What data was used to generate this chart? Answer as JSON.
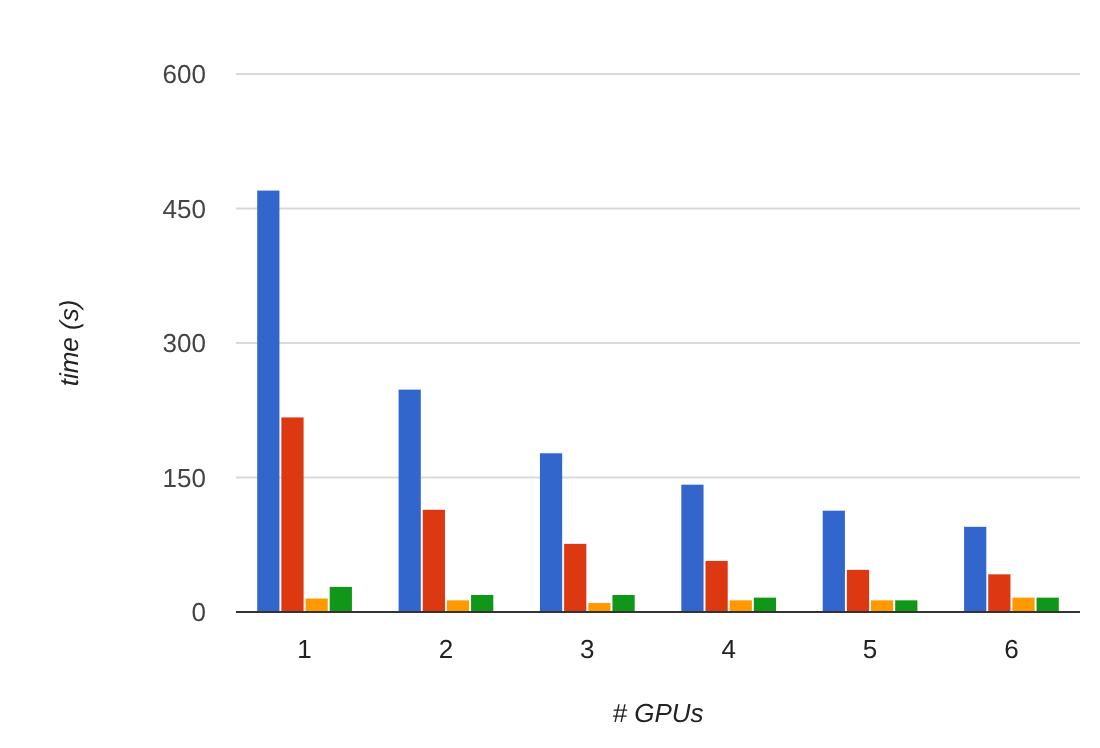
{
  "chart_data": {
    "type": "bar",
    "xlabel": "# GPUs",
    "ylabel": "time (s)",
    "categories": [
      "1",
      "2",
      "3",
      "4",
      "5",
      "6"
    ],
    "series": [
      {
        "color": "#3366cc",
        "values": [
          470,
          248,
          177,
          142,
          113,
          95
        ]
      },
      {
        "color": "#dc3912",
        "values": [
          217,
          114,
          76,
          57,
          47,
          42
        ]
      },
      {
        "color": "#ff9900",
        "values": [
          15,
          13,
          10,
          13,
          13,
          16
        ]
      },
      {
        "color": "#109618",
        "values": [
          28,
          19,
          19,
          16,
          13,
          16
        ]
      }
    ],
    "ylim": [
      0,
      600
    ],
    "yticks": [
      0,
      150,
      300,
      450,
      600
    ],
    "grid": "y"
  }
}
